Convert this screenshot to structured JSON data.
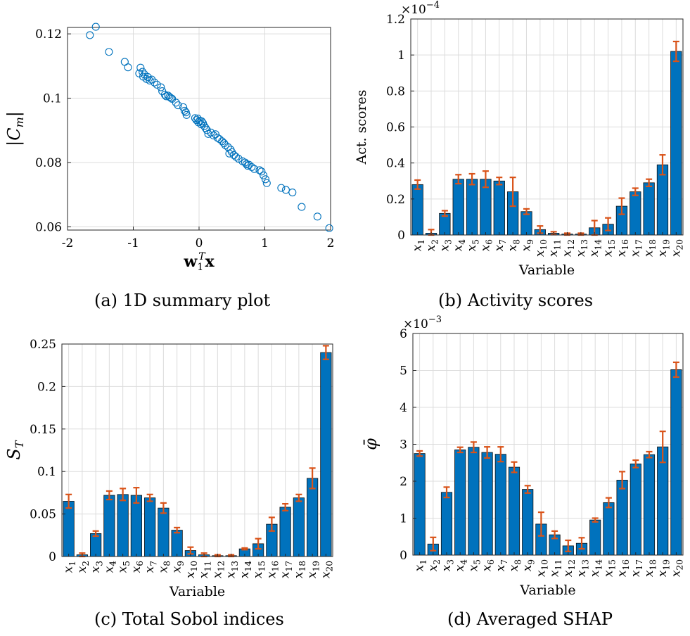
{
  "colors": {
    "bar": "#0072BD",
    "error": "#D95319",
    "marker": "#0072BD",
    "grid": "#dcdcdc"
  },
  "captions": {
    "a": "(a) 1D summary plot",
    "b": "(b) Activity scores",
    "c": "(c) Total Sobol indices",
    "d": "(d) Averaged SHAP"
  },
  "chart_data": [
    {
      "id": "a",
      "type": "scatter",
      "xlabel": "w1Tx",
      "ylabel": "|Cm|",
      "xlim": [
        -2,
        2
      ],
      "ylim": [
        0.059,
        0.122
      ],
      "xticks": [
        -2,
        -1,
        0,
        1,
        2
      ],
      "xtick_labels": [
        "-2",
        "-1",
        "0",
        "1",
        "2"
      ],
      "yticks": [
        0.06,
        0.08,
        0.1,
        0.12
      ],
      "ytick_labels": [
        "0.06",
        "0.08",
        "0.1",
        "0.12"
      ],
      "grid": true,
      "points": [
        [
          -1.57,
          0.1222
        ],
        [
          -1.66,
          0.1196
        ],
        [
          -1.37,
          0.1144
        ],
        [
          -1.13,
          0.1113
        ],
        [
          -1.08,
          0.1096
        ],
        [
          -0.89,
          0.1095
        ],
        [
          -0.91,
          0.1077
        ],
        [
          -0.86,
          0.1082
        ],
        [
          -0.85,
          0.1067
        ],
        [
          -0.83,
          0.1074
        ],
        [
          -0.8,
          0.106
        ],
        [
          -0.78,
          0.1066
        ],
        [
          -0.75,
          0.1055
        ],
        [
          -0.72,
          0.1058
        ],
        [
          -0.68,
          0.1049
        ],
        [
          -0.64,
          0.1042
        ],
        [
          -0.58,
          0.1034
        ],
        [
          -0.56,
          0.1022
        ],
        [
          -0.52,
          0.1011
        ],
        [
          -0.5,
          0.1006
        ],
        [
          -0.47,
          0.1008
        ],
        [
          -0.45,
          0.1004
        ],
        [
          -0.43,
          0.1001
        ],
        [
          -0.41,
          0.0998
        ],
        [
          -0.35,
          0.0986
        ],
        [
          -0.32,
          0.0978
        ],
        [
          -0.24,
          0.0972
        ],
        [
          -0.22,
          0.0961
        ],
        [
          -0.2,
          0.0956
        ],
        [
          -0.19,
          0.0948
        ],
        [
          -0.06,
          0.0938
        ],
        [
          -0.04,
          0.0932
        ],
        [
          -0.02,
          0.0937
        ],
        [
          -0.01,
          0.0925
        ],
        [
          0.01,
          0.093
        ],
        [
          0.03,
          0.0919
        ],
        [
          0.04,
          0.0928
        ],
        [
          0.06,
          0.0922
        ],
        [
          0.08,
          0.0913
        ],
        [
          0.1,
          0.0907
        ],
        [
          0.12,
          0.0901
        ],
        [
          0.14,
          0.0889
        ],
        [
          0.18,
          0.0893
        ],
        [
          0.22,
          0.0884
        ],
        [
          0.25,
          0.0888
        ],
        [
          0.28,
          0.0877
        ],
        [
          0.31,
          0.0873
        ],
        [
          0.35,
          0.0866
        ],
        [
          0.38,
          0.086
        ],
        [
          0.4,
          0.0854
        ],
        [
          0.44,
          0.0848
        ],
        [
          0.48,
          0.084
        ],
        [
          0.46,
          0.0828
        ],
        [
          0.5,
          0.0832
        ],
        [
          0.53,
          0.0823
        ],
        [
          0.56,
          0.0818
        ],
        [
          0.6,
          0.0812
        ],
        [
          0.66,
          0.0804
        ],
        [
          0.7,
          0.08
        ],
        [
          0.72,
          0.0795
        ],
        [
          0.74,
          0.079
        ],
        [
          0.76,
          0.0793
        ],
        [
          0.8,
          0.0786
        ],
        [
          0.84,
          0.078
        ],
        [
          0.92,
          0.0776
        ],
        [
          0.95,
          0.0772
        ],
        [
          0.98,
          0.076
        ],
        [
          1.01,
          0.0748
        ],
        [
          1.03,
          0.0736
        ],
        [
          1.25,
          0.0721
        ],
        [
          1.32,
          0.0715
        ],
        [
          1.42,
          0.0707
        ],
        [
          1.56,
          0.0662
        ],
        [
          1.8,
          0.0632
        ],
        [
          1.98,
          0.0596
        ]
      ]
    },
    {
      "id": "b",
      "type": "bar",
      "ylabel": "Act. scores",
      "xlabel": "Variable",
      "exponent": "-4",
      "ylim": [
        0,
        1.2
      ],
      "yticks": [
        0,
        0.2,
        0.4,
        0.6,
        0.8,
        1,
        1.2
      ],
      "ytick_labels": [
        "0",
        "0.2",
        "0.4",
        "0.6",
        "0.8",
        "1",
        "1.2"
      ],
      "grid": true,
      "categories": [
        "1",
        "2",
        "3",
        "4",
        "5",
        "6",
        "7",
        "8",
        "9",
        "10",
        "11",
        "12",
        "13",
        "14",
        "15",
        "16",
        "17",
        "18",
        "19",
        "20"
      ],
      "values": [
        0.28,
        0.01,
        0.12,
        0.31,
        0.31,
        0.31,
        0.3,
        0.24,
        0.13,
        0.03,
        0.01,
        0.005,
        0.005,
        0.04,
        0.06,
        0.16,
        0.24,
        0.29,
        0.39,
        1.02
      ],
      "errors": [
        0.025,
        0.02,
        0.015,
        0.025,
        0.03,
        0.045,
        0.02,
        0.08,
        0.015,
        0.02,
        0.008,
        0.005,
        0.005,
        0.04,
        0.035,
        0.045,
        0.02,
        0.02,
        0.055,
        0.055
      ]
    },
    {
      "id": "c",
      "type": "bar",
      "ylabel": "ST",
      "xlabel": "Variable",
      "exponent": "",
      "ylim": [
        0,
        0.25
      ],
      "yticks": [
        0,
        0.05,
        0.1,
        0.15,
        0.2,
        0.25
      ],
      "ytick_labels": [
        "0",
        "0.05",
        "0.1",
        "0.15",
        "0.2",
        "0.25"
      ],
      "grid": true,
      "categories": [
        "1",
        "2",
        "3",
        "4",
        "5",
        "6",
        "7",
        "8",
        "9",
        "10",
        "11",
        "12",
        "13",
        "14",
        "15",
        "16",
        "17",
        "18",
        "19",
        "20"
      ],
      "values": [
        0.065,
        0.002,
        0.027,
        0.072,
        0.073,
        0.072,
        0.069,
        0.057,
        0.031,
        0.007,
        0.002,
        0.001,
        0.001,
        0.009,
        0.015,
        0.038,
        0.058,
        0.069,
        0.092,
        0.24
      ],
      "errors": [
        0.008,
        0.002,
        0.003,
        0.005,
        0.007,
        0.009,
        0.004,
        0.006,
        0.003,
        0.004,
        0.002,
        0.001,
        0.001,
        0.001,
        0.006,
        0.008,
        0.004,
        0.004,
        0.012,
        0.008
      ]
    },
    {
      "id": "d",
      "type": "bar",
      "ylabel": "φ̄",
      "xlabel": "Variable",
      "exponent": "-3",
      "ylim": [
        0,
        6
      ],
      "yticks": [
        0,
        1,
        2,
        3,
        4,
        5,
        6
      ],
      "ytick_labels": [
        "0",
        "1",
        "2",
        "3",
        "4",
        "5",
        "6"
      ],
      "grid": true,
      "categories": [
        "1",
        "2",
        "3",
        "4",
        "5",
        "6",
        "7",
        "8",
        "9",
        "10",
        "11",
        "12",
        "13",
        "14",
        "15",
        "16",
        "17",
        "18",
        "19",
        "20"
      ],
      "values": [
        2.75,
        0.3,
        1.7,
        2.85,
        2.92,
        2.78,
        2.73,
        2.38,
        1.78,
        0.84,
        0.55,
        0.25,
        0.32,
        0.95,
        1.42,
        2.03,
        2.47,
        2.72,
        2.93,
        5.02
      ],
      "errors": [
        0.07,
        0.18,
        0.14,
        0.07,
        0.14,
        0.15,
        0.2,
        0.14,
        0.1,
        0.32,
        0.1,
        0.15,
        0.15,
        0.05,
        0.13,
        0.23,
        0.1,
        0.08,
        0.42,
        0.2
      ]
    }
  ]
}
